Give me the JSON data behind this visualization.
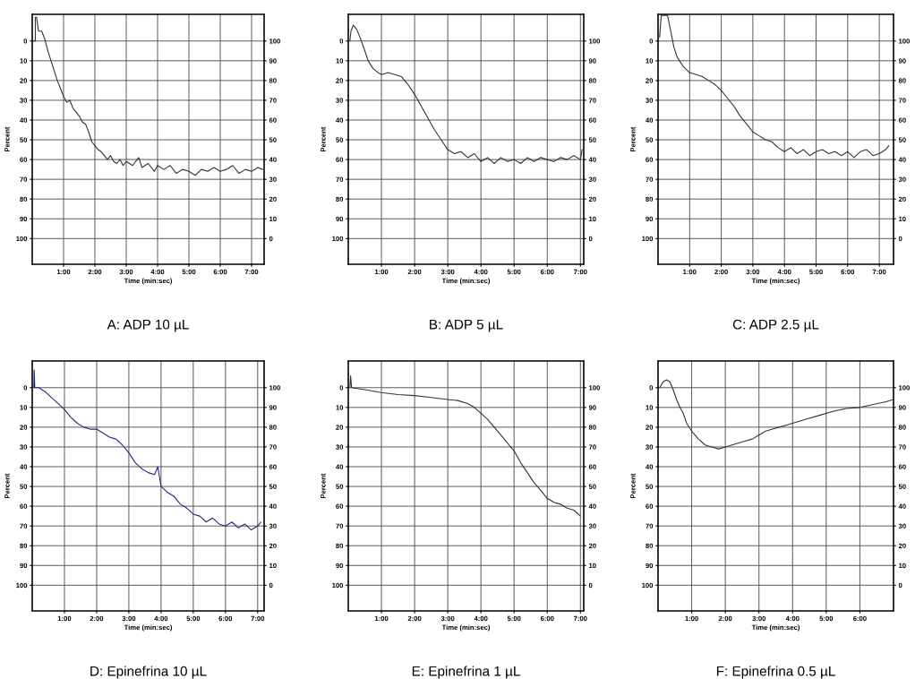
{
  "chart_data": [
    {
      "type": "line",
      "title": "A: ADP 10 µL",
      "xlabel": "Time (min:sec)",
      "ylabel": "Percent",
      "grid": true,
      "legend": false,
      "marker": "none",
      "line_style": "solid",
      "xlim": [
        0,
        7.4
      ],
      "xticks": [
        {
          "value": 1,
          "label": "1:00"
        },
        {
          "value": 2,
          "label": "2:00"
        },
        {
          "value": 3,
          "label": "3:00"
        },
        {
          "value": 4,
          "label": "4:00"
        },
        {
          "value": 5,
          "label": "5:00"
        },
        {
          "value": 6,
          "label": "6:00"
        },
        {
          "value": 7,
          "label": "7:00"
        }
      ],
      "ylim": [
        113,
        -13.5
      ],
      "yticks": [
        0,
        10,
        20,
        30,
        40,
        50,
        60,
        70,
        80,
        90,
        100
      ],
      "y2lim": [
        -13,
        113.5
      ],
      "y2ticks": [
        0,
        10,
        20,
        30,
        40,
        50,
        60,
        70,
        80,
        90,
        100
      ],
      "series": [
        {
          "color": "#333333",
          "x": [
            0,
            0.1,
            0.1,
            0.14,
            0.2,
            0.3,
            0.4,
            0.5,
            0.6,
            0.7,
            0.8,
            0.9,
            1.0,
            1.1,
            1.2,
            1.3,
            1.4,
            1.5,
            1.6,
            1.7,
            1.8,
            1.9,
            2.0,
            2.1,
            2.2,
            2.3,
            2.4,
            2.5,
            2.6,
            2.7,
            2.8,
            2.9,
            3.0,
            3.2,
            3.4,
            3.5,
            3.7,
            3.9,
            4.0,
            4.2,
            4.4,
            4.6,
            4.8,
            5.0,
            5.2,
            5.4,
            5.6,
            5.8,
            6.0,
            6.2,
            6.4,
            6.6,
            6.8,
            7.0,
            7.2,
            7.35
          ],
          "values": [
            0,
            0,
            -12,
            -12,
            -5,
            -5,
            -1,
            5,
            10,
            15,
            20,
            24,
            28,
            31,
            30,
            34,
            36,
            38,
            41,
            42,
            46,
            51,
            53,
            55,
            56,
            58,
            60,
            58,
            61,
            62,
            60,
            63,
            61,
            63,
            59,
            64,
            62,
            66,
            63,
            65,
            63,
            67,
            65,
            66,
            68,
            65,
            66,
            64,
            66,
            65,
            63,
            67,
            65,
            66,
            64,
            65
          ]
        }
      ]
    },
    {
      "type": "line",
      "title": "B: ADP 5 µL",
      "xlabel": "Time (min:sec)",
      "ylabel": "Percent",
      "grid": true,
      "legend": false,
      "marker": "none",
      "line_style": "solid",
      "xlim": [
        0,
        7.1
      ],
      "xticks": [
        {
          "value": 1,
          "label": "1:00"
        },
        {
          "value": 2,
          "label": "2:00"
        },
        {
          "value": 3,
          "label": "3:00"
        },
        {
          "value": 4,
          "label": "4:00"
        },
        {
          "value": 5,
          "label": "5:00"
        },
        {
          "value": 6,
          "label": "6:00"
        },
        {
          "value": 7,
          "label": "7:00"
        }
      ],
      "ylim": [
        113,
        -13.5
      ],
      "yticks": [
        0,
        10,
        20,
        30,
        40,
        50,
        60,
        70,
        80,
        90,
        100
      ],
      "y2lim": [
        -13,
        113.5
      ],
      "y2ticks": [
        0,
        10,
        20,
        30,
        40,
        50,
        60,
        70,
        80,
        90,
        100
      ],
      "series": [
        {
          "color": "#333333",
          "x": [
            0.05,
            0.08,
            0.15,
            0.25,
            0.35,
            0.5,
            0.6,
            0.75,
            0.9,
            1.0,
            1.2,
            1.4,
            1.6,
            1.8,
            2.0,
            2.2,
            2.4,
            2.6,
            2.8,
            3.0,
            3.2,
            3.4,
            3.6,
            3.8,
            4.0,
            4.2,
            4.4,
            4.6,
            4.8,
            5.0,
            5.2,
            5.4,
            5.6,
            5.8,
            6.0,
            6.2,
            6.4,
            6.6,
            6.8,
            7.0,
            7.05
          ],
          "values": [
            0,
            -5,
            -8,
            -6,
            -2,
            5,
            10,
            14,
            16,
            17,
            16,
            17,
            18,
            22,
            27,
            33,
            39,
            45,
            50,
            55,
            57,
            56,
            59,
            57,
            61,
            59,
            62,
            59,
            61,
            60,
            62,
            59,
            61,
            59,
            60,
            61,
            59,
            60,
            58,
            60,
            55
          ]
        }
      ]
    },
    {
      "type": "line",
      "title": "C: ADP 2.5 µL",
      "xlabel": "Time (min:sec)",
      "ylabel": "Percent",
      "grid": true,
      "legend": false,
      "marker": "none",
      "line_style": "solid",
      "xlim": [
        0,
        7.45
      ],
      "xticks": [
        {
          "value": 1,
          "label": "1:00"
        },
        {
          "value": 2,
          "label": "2:00"
        },
        {
          "value": 3,
          "label": "3:00"
        },
        {
          "value": 4,
          "label": "4:00"
        },
        {
          "value": 5,
          "label": "5:00"
        },
        {
          "value": 6,
          "label": "6:00"
        },
        {
          "value": 7,
          "label": "7:00"
        }
      ],
      "ylim": [
        113,
        -13.5
      ],
      "yticks": [
        0,
        10,
        20,
        30,
        40,
        50,
        60,
        70,
        80,
        90,
        100
      ],
      "y2lim": [
        -13,
        113.5
      ],
      "y2ticks": [
        0,
        10,
        20,
        30,
        40,
        50,
        60,
        70,
        80,
        90,
        100
      ],
      "series": [
        {
          "color": "#333333",
          "x": [
            0.05,
            0.1,
            0.3,
            0.4,
            0.5,
            0.6,
            0.8,
            1.0,
            1.2,
            1.4,
            1.6,
            1.8,
            2.0,
            2.2,
            2.4,
            2.6,
            2.8,
            3.0,
            3.2,
            3.4,
            3.6,
            3.8,
            4.0,
            4.2,
            4.4,
            4.6,
            4.8,
            5.0,
            5.2,
            5.4,
            5.6,
            5.8,
            6.0,
            6.2,
            6.4,
            6.6,
            6.8,
            7.0,
            7.2,
            7.3
          ],
          "values": [
            -2,
            -13,
            -13,
            -5,
            3,
            8,
            13,
            16,
            17,
            18,
            20,
            22,
            25,
            29,
            33,
            38,
            42,
            46,
            48,
            50,
            51,
            54,
            56,
            54,
            57,
            55,
            58,
            56,
            55,
            57,
            56,
            58,
            56,
            59,
            56,
            55,
            58,
            57,
            55,
            53
          ]
        }
      ]
    },
    {
      "type": "line",
      "title": "D: Epinefrina 10 µL",
      "xlabel": "Time (min:sec)",
      "ylabel": "Percent",
      "grid": true,
      "legend": false,
      "marker": "none",
      "line_style": "solid",
      "xlim": [
        0,
        7.2
      ],
      "xticks": [
        {
          "value": 1,
          "label": "1:00"
        },
        {
          "value": 2,
          "label": "2:00"
        },
        {
          "value": 3,
          "label": "3:00"
        },
        {
          "value": 4,
          "label": "4:00"
        },
        {
          "value": 5,
          "label": "5:00"
        },
        {
          "value": 6,
          "label": "6:00"
        },
        {
          "value": 7,
          "label": "7:00"
        }
      ],
      "ylim": [
        113,
        -13.5
      ],
      "yticks": [
        0,
        10,
        20,
        30,
        40,
        50,
        60,
        70,
        80,
        90,
        100
      ],
      "y2lim": [
        -13,
        113.5
      ],
      "y2ticks": [
        0,
        10,
        20,
        30,
        40,
        50,
        60,
        70,
        80,
        90,
        100
      ],
      "series": [
        {
          "color": "#1f2a7a",
          "x": [
            0.05,
            0.06,
            0.08,
            0.2,
            0.4,
            0.6,
            0.8,
            1.0,
            1.2,
            1.4,
            1.6,
            1.8,
            2.0,
            2.2,
            2.4,
            2.6,
            2.8,
            3.0,
            3.2,
            3.4,
            3.6,
            3.8,
            3.9,
            4.0,
            4.2,
            4.4,
            4.6,
            4.8,
            5.0,
            5.2,
            5.4,
            5.6,
            5.8,
            6.0,
            6.2,
            6.4,
            6.6,
            6.8,
            7.0,
            7.1
          ],
          "values": [
            0,
            -9,
            0,
            0,
            2,
            5,
            8,
            11,
            15,
            18,
            20,
            21,
            21,
            23,
            25,
            26,
            29,
            33,
            38,
            41,
            43,
            44,
            40,
            50,
            53,
            55,
            59,
            61,
            64,
            65,
            68,
            66,
            69,
            70,
            68,
            71,
            69,
            72,
            70,
            68
          ]
        }
      ]
    },
    {
      "type": "line",
      "title": "E: Epinefrina 1 µL",
      "xlabel": "Time (min:sec)",
      "ylabel": "Percent",
      "grid": true,
      "legend": false,
      "marker": "none",
      "line_style": "solid",
      "xlim": [
        0,
        7.1
      ],
      "xticks": [
        {
          "value": 1,
          "label": "1:00"
        },
        {
          "value": 2,
          "label": "2:00"
        },
        {
          "value": 3,
          "label": "3:00"
        },
        {
          "value": 4,
          "label": "4:00"
        },
        {
          "value": 5,
          "label": "5:00"
        },
        {
          "value": 6,
          "label": "6:00"
        },
        {
          "value": 7,
          "label": "7:00"
        }
      ],
      "ylim": [
        113,
        -13.5
      ],
      "yticks": [
        0,
        10,
        20,
        30,
        40,
        50,
        60,
        70,
        80,
        90,
        100
      ],
      "y2lim": [
        -13,
        113.5
      ],
      "y2ticks": [
        0,
        10,
        20,
        30,
        40,
        50,
        60,
        70,
        80,
        90,
        100
      ],
      "series": [
        {
          "color": "#333333",
          "x": [
            0.05,
            0.07,
            0.1,
            0.5,
            1.0,
            1.5,
            2.0,
            2.5,
            3.0,
            3.3,
            3.6,
            3.8,
            4.0,
            4.2,
            4.4,
            4.6,
            4.8,
            5.0,
            5.2,
            5.4,
            5.6,
            5.8,
            6.0,
            6.2,
            6.4,
            6.6,
            6.8,
            7.0
          ],
          "values": [
            0,
            -6,
            0,
            1,
            2.5,
            3.5,
            4,
            5,
            6,
            6.5,
            8,
            10,
            13,
            16,
            20,
            24,
            28,
            32,
            38,
            43,
            48,
            52,
            56,
            58,
            59,
            61,
            62,
            65
          ]
        }
      ]
    },
    {
      "type": "line",
      "title": "F: Epinefrina 0.5 µL",
      "xlabel": "Time (min:sec)",
      "ylabel": "Percent",
      "grid": true,
      "legend": false,
      "marker": "none",
      "line_style": "solid",
      "xlim": [
        0,
        7
      ],
      "xticks": [
        {
          "value": 1,
          "label": "1:00"
        },
        {
          "value": 2,
          "label": "2:00"
        },
        {
          "value": 3,
          "label": "3:00"
        },
        {
          "value": 4,
          "label": "4:00"
        },
        {
          "value": 5,
          "label": "5:00"
        },
        {
          "value": 6,
          "label": "6:00"
        }
      ],
      "ylim": [
        113,
        -13.5
      ],
      "yticks": [
        0,
        10,
        20,
        30,
        40,
        50,
        60,
        70,
        80,
        90,
        100
      ],
      "y2lim": [
        -13,
        113.5
      ],
      "y2ticks": [
        0,
        10,
        20,
        30,
        40,
        50,
        60,
        70,
        80,
        90,
        100
      ],
      "series": [
        {
          "color": "#333333",
          "x": [
            0.05,
            0.15,
            0.25,
            0.35,
            0.45,
            0.55,
            0.65,
            0.75,
            0.85,
            1.0,
            1.2,
            1.4,
            1.6,
            1.8,
            2.0,
            2.2,
            2.4,
            2.6,
            2.8,
            3.0,
            3.2,
            3.4,
            3.6,
            3.8,
            4.0,
            4.4,
            4.8,
            5.2,
            5.6,
            6.0,
            6.4,
            6.8,
            7.0
          ],
          "values": [
            0,
            -3,
            -4,
            -3,
            1,
            6,
            10,
            13,
            18,
            22,
            26,
            29,
            30,
            31,
            30,
            29,
            28,
            27,
            26,
            24,
            22,
            21,
            20,
            19,
            18,
            16,
            14,
            12,
            10.5,
            10,
            8.5,
            7,
            6
          ]
        }
      ]
    }
  ]
}
